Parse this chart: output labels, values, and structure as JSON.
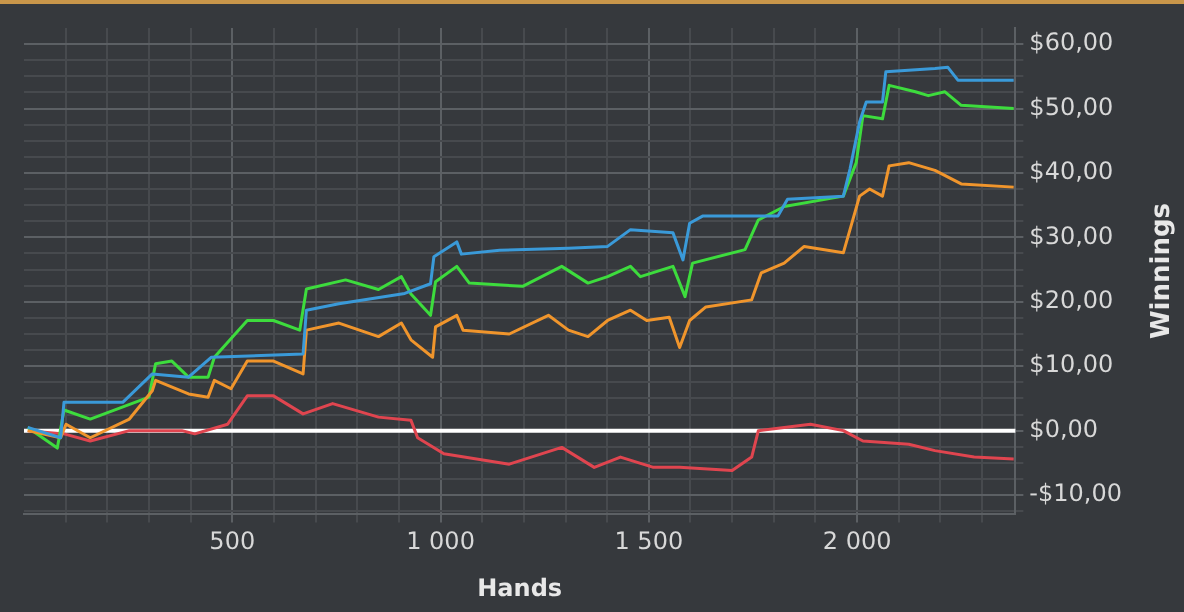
{
  "chart_data": {
    "type": "line",
    "xlabel": "Hands",
    "ylabel": "Winnings",
    "xlim": [
      0,
      2380
    ],
    "ylim": [
      -13,
      62.5
    ],
    "xticks": [
      {
        "value": 100,
        "label": null
      },
      {
        "value": 200,
        "label": null
      },
      {
        "value": 300,
        "label": null
      },
      {
        "value": 400,
        "label": null
      },
      {
        "value": 500,
        "label": "500"
      },
      {
        "value": 600,
        "label": null
      },
      {
        "value": 700,
        "label": null
      },
      {
        "value": 800,
        "label": null
      },
      {
        "value": 900,
        "label": null
      },
      {
        "value": 1000,
        "label": "1 000"
      },
      {
        "value": 1100,
        "label": null
      },
      {
        "value": 1200,
        "label": null
      },
      {
        "value": 1300,
        "label": null
      },
      {
        "value": 1400,
        "label": null
      },
      {
        "value": 1500,
        "label": "1 500"
      },
      {
        "value": 1600,
        "label": null
      },
      {
        "value": 1700,
        "label": null
      },
      {
        "value": 1800,
        "label": null
      },
      {
        "value": 1900,
        "label": null
      },
      {
        "value": 2000,
        "label": "2 000"
      },
      {
        "value": 2100,
        "label": null
      },
      {
        "value": 2200,
        "label": null
      },
      {
        "value": 2300,
        "label": null
      }
    ],
    "yticks": [
      {
        "value": -12.5,
        "label": null
      },
      {
        "value": -10,
        "label": "-$10,00"
      },
      {
        "value": -7.5,
        "label": null
      },
      {
        "value": -5,
        "label": null
      },
      {
        "value": -2.5,
        "label": null
      },
      {
        "value": 0,
        "label": "$0,00"
      },
      {
        "value": 2.5,
        "label": null
      },
      {
        "value": 5,
        "label": null
      },
      {
        "value": 7.5,
        "label": null
      },
      {
        "value": 10,
        "label": "$10,00"
      },
      {
        "value": 12.5,
        "label": null
      },
      {
        "value": 15,
        "label": null
      },
      {
        "value": 17.5,
        "label": null
      },
      {
        "value": 20,
        "label": "$20,00"
      },
      {
        "value": 22.5,
        "label": null
      },
      {
        "value": 25,
        "label": null
      },
      {
        "value": 27.5,
        "label": null
      },
      {
        "value": 30,
        "label": "$30,00"
      },
      {
        "value": 32.5,
        "label": null
      },
      {
        "value": 35,
        "label": null
      },
      {
        "value": 37.5,
        "label": null
      },
      {
        "value": 40,
        "label": "$40,00"
      },
      {
        "value": 42.5,
        "label": null
      },
      {
        "value": 45,
        "label": null
      },
      {
        "value": 47.5,
        "label": null
      },
      {
        "value": 50,
        "label": "$50,00"
      },
      {
        "value": 52.5,
        "label": null
      },
      {
        "value": 55,
        "label": null
      },
      {
        "value": 57.5,
        "label": null
      },
      {
        "value": 60,
        "label": "$60,00"
      }
    ],
    "grid": true,
    "legend": false,
    "marker": "none",
    "line_style": "solid",
    "ref_lines": [
      {
        "axis": "y",
        "value": 0,
        "color": "#ffffff"
      }
    ],
    "series": [
      {
        "color": "#3a9ad9",
        "x": [
          9,
          88,
          96,
          175,
          237,
          308,
          395,
          450,
          670,
          678,
          756,
          914,
          976,
          984,
          1039,
          1050,
          1142,
          1307,
          1401,
          1456,
          1558,
          1582,
          1598,
          1629,
          1810,
          1833,
          1967,
          1983,
          2006,
          2022,
          2061,
          2069,
          2187,
          2218,
          2242,
          2376
        ],
        "values": [
          0.5,
          -1.1,
          4.4,
          4.4,
          4.4,
          8.8,
          8.3,
          11.4,
          11.9,
          18.7,
          19.7,
          21.3,
          22.8,
          27.0,
          29.3,
          27.4,
          28.0,
          28.3,
          28.6,
          31.2,
          30.7,
          26.5,
          32.2,
          33.3,
          33.3,
          35.9,
          36.4,
          40.6,
          47.9,
          51.0,
          51.0,
          55.7,
          56.2,
          56.4,
          54.4,
          54.4
        ]
      },
      {
        "color": "#f0952c",
        "x": [
          9,
          88,
          101,
          159,
          253,
          308,
          316,
          395,
          442,
          457,
          497,
          536,
          599,
          670,
          678,
          756,
          851,
          906,
          929,
          981,
          988,
          1039,
          1054,
          1165,
          1259,
          1307,
          1354,
          1401,
          1456,
          1495,
          1549,
          1574,
          1598,
          1637,
          1747,
          1770,
          1825,
          1873,
          1967,
          1983,
          2006,
          2030,
          2061,
          2077,
          2124,
          2187,
          2250,
          2376
        ],
        "values": [
          0,
          -1.1,
          1.0,
          -1.1,
          1.8,
          6.2,
          7.8,
          5.7,
          5.2,
          7.8,
          6.5,
          10.8,
          10.8,
          8.8,
          15.6,
          16.7,
          14.6,
          16.7,
          14.1,
          11.4,
          16.1,
          17.9,
          15.6,
          15.0,
          17.9,
          15.6,
          14.6,
          17.1,
          18.7,
          17.1,
          17.6,
          12.9,
          17.1,
          19.2,
          20.3,
          24.5,
          26.0,
          28.6,
          27.6,
          31.2,
          36.4,
          37.5,
          36.4,
          41.1,
          41.6,
          40.4,
          38.3,
          37.8
        ]
      },
      {
        "color": "#3ddc3d",
        "x": [
          9,
          80,
          96,
          159,
          300,
          316,
          355,
          395,
          442,
          457,
          536,
          599,
          662,
          678,
          772,
          851,
          906,
          929,
          976,
          988,
          1039,
          1069,
          1197,
          1291,
          1354,
          1401,
          1456,
          1480,
          1558,
          1587,
          1605,
          1731,
          1763,
          1825,
          1967,
          1998,
          2014,
          2061,
          2077,
          2140,
          2171,
          2211,
          2250,
          2376
        ],
        "values": [
          0.5,
          -2.7,
          3.2,
          1.8,
          5.2,
          10.4,
          10.8,
          8.3,
          8.3,
          11.4,
          17.1,
          17.1,
          15.6,
          22.0,
          23.4,
          21.9,
          23.9,
          21.2,
          17.9,
          23.1,
          25.5,
          22.9,
          22.4,
          25.5,
          22.9,
          23.9,
          25.5,
          23.9,
          25.5,
          20.8,
          26.0,
          28.1,
          32.7,
          34.8,
          36.4,
          41.6,
          48.9,
          48.4,
          53.6,
          52.6,
          52.0,
          52.6,
          50.5,
          50.0
        ]
      },
      {
        "color": "#e0454f",
        "x": [
          9,
          96,
          159,
          253,
          379,
          410,
          489,
          536,
          599,
          670,
          741,
          851,
          929,
          945,
          1008,
          1165,
          1291,
          1369,
          1432,
          1511,
          1574,
          1700,
          1747,
          1763,
          1888,
          1967,
          2014,
          2124,
          2187,
          2281,
          2376
        ],
        "values": [
          0,
          -0.5,
          -1.6,
          0,
          0,
          -0.5,
          1.0,
          5.4,
          5.4,
          2.6,
          4.2,
          2.1,
          1.6,
          -1.1,
          -3.6,
          -5.2,
          -2.6,
          -5.7,
          -4.1,
          -5.7,
          -5.7,
          -6.2,
          -4.1,
          0,
          1.0,
          0,
          -1.6,
          -2.1,
          -3.1,
          -4.1,
          -4.4
        ]
      }
    ]
  }
}
